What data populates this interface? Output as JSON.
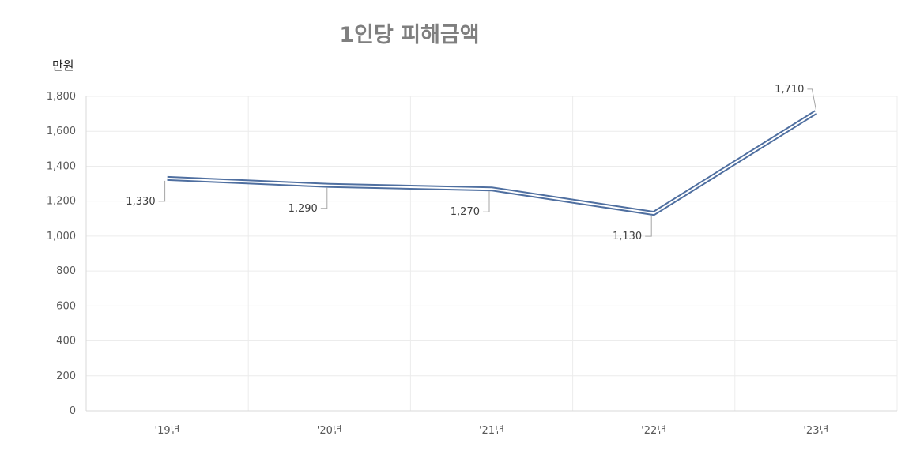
{
  "chart_data": {
    "type": "line",
    "title": "1인당 피해금액",
    "ylabel": "만원",
    "xlabel": "",
    "categories": [
      "'19년",
      "'20년",
      "'21년",
      "'22년",
      "'23년"
    ],
    "series": [
      {
        "values": [
          1330,
          1290,
          1270,
          1130,
          1710
        ]
      }
    ],
    "data_labels": [
      "1,330",
      "1,290",
      "1,270",
      "1,130",
      "1,710"
    ],
    "ylim": [
      0,
      1800
    ],
    "yticks": [
      0,
      200,
      400,
      600,
      800,
      1000,
      1200,
      1400,
      1600,
      1800
    ],
    "ytick_labels": [
      "0",
      "200",
      "400",
      "600",
      "800",
      "1,000",
      "1,200",
      "1,400",
      "1,600",
      "1,800"
    ],
    "grid": true,
    "legend": "none",
    "line_color": "#4f6fa0",
    "line_style": "double"
  }
}
